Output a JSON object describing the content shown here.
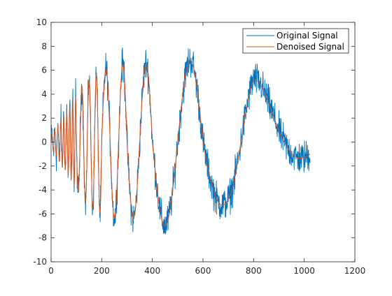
{
  "chart_data": {
    "type": "line",
    "title": "",
    "xlabel": "",
    "ylabel": "",
    "xlim": [
      0,
      1200
    ],
    "ylim": [
      -10,
      10
    ],
    "x_ticks": [
      0,
      200,
      400,
      600,
      800,
      1000,
      1200
    ],
    "y_ticks": [
      -10,
      -8,
      -6,
      -4,
      -2,
      0,
      2,
      4,
      6,
      8,
      10
    ],
    "x_tick_labels": [
      "0",
      "200",
      "400",
      "600",
      "800",
      "1000",
      "1200"
    ],
    "y_tick_labels": [
      "-10",
      "-8",
      "-6",
      "-4",
      "-2",
      "0",
      "2",
      "4",
      "6",
      "8",
      "10"
    ],
    "grid": false,
    "legend_position": "top-right",
    "n_points": 1024,
    "series": [
      {
        "name": "Original Signal",
        "color": "#0072BD",
        "description_values": "noisy version of the denoised signal; noise roughly +/-1.2",
        "noise_amplitude": 1.2
      },
      {
        "name": "Denoised Signal",
        "color": "#D95319",
        "envelope_x": [
          0,
          60,
          130,
          200,
          270,
          350,
          430,
          560,
          700,
          800,
          900,
          1023
        ],
        "envelope_amp": [
          0.5,
          2.5,
          5.0,
          6.0,
          6.5,
          6.3,
          7.0,
          6.8,
          5.0,
          5.5,
          3.0,
          1.0
        ],
        "phase_x": [
          0,
          100,
          200,
          300,
          400,
          500,
          600,
          700,
          800,
          900,
          1023
        ],
        "phase_cycles": [
          0,
          8.5,
          12.0,
          13.5,
          14.5,
          15.0,
          15.5,
          15.8,
          16.2,
          16.45,
          16.75
        ]
      }
    ]
  }
}
